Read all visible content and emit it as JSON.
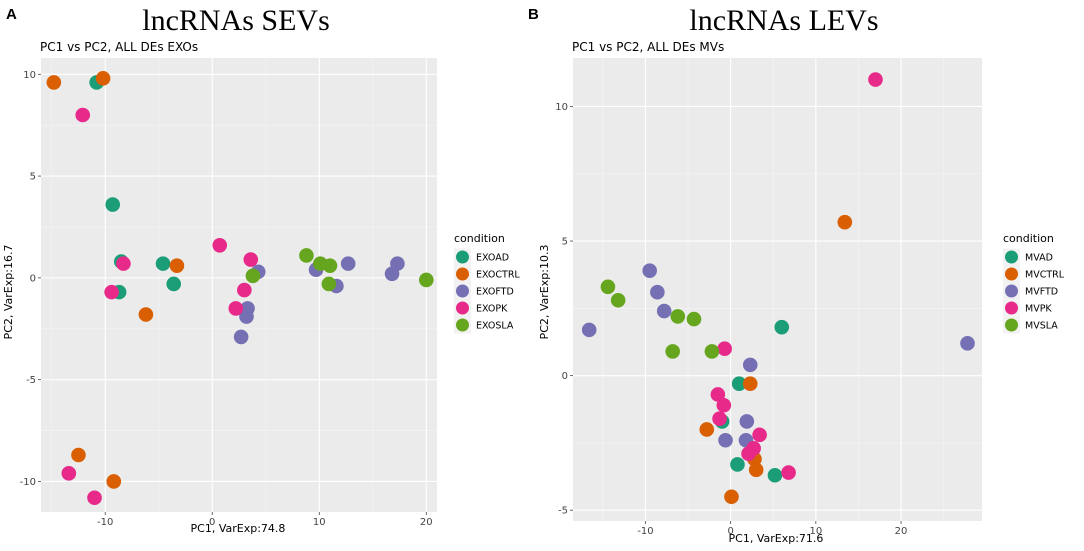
{
  "colors": {
    "AD": "#1b9e77",
    "CTRL": "#d95f02",
    "FTD": "#7570b3",
    "PK": "#e7298a",
    "SLA": "#66a61e"
  },
  "chart_data": [
    {
      "type": "scatter",
      "panel_letter": "A",
      "title": "lncRNAs SEVs",
      "subtitle": "PC1 vs PC2, ALL DEs EXOs",
      "xlabel": "PC1, VarExp:74.8",
      "ylabel": "PC2, VarExp:16.7",
      "xlim": [
        -16,
        21
      ],
      "ylim": [
        -11.5,
        10.8
      ],
      "xticks": [
        -10,
        0,
        10,
        20
      ],
      "yticks": [
        10,
        5,
        0,
        -5,
        -10
      ],
      "xtick_labels": [
        "-10",
        "0",
        "10",
        "20"
      ],
      "ytick_labels": [
        "10",
        "5",
        "0",
        "-5",
        "-10"
      ],
      "grid": true,
      "legend": {
        "title": "condition",
        "position": "right",
        "entries": [
          {
            "label": "EXOAD",
            "color_key": "AD"
          },
          {
            "label": "EXOCTRL",
            "color_key": "CTRL"
          },
          {
            "label": "EXOFTD",
            "color_key": "FTD"
          },
          {
            "label": "EXOPK",
            "color_key": "PK"
          },
          {
            "label": "EXOSLA",
            "color_key": "SLA"
          }
        ]
      },
      "series": [
        {
          "name": "EXOAD",
          "color_key": "AD",
          "points": [
            [
              -10.8,
              9.6
            ],
            [
              -9.3,
              3.6
            ],
            [
              -8.5,
              0.8
            ],
            [
              -8.7,
              -0.7
            ],
            [
              -4.6,
              0.7
            ],
            [
              -3.6,
              -0.3
            ]
          ]
        },
        {
          "name": "EXOCTRL",
          "color_key": "CTRL",
          "points": [
            [
              -14.8,
              9.6
            ],
            [
              -10.2,
              9.8
            ],
            [
              -3.3,
              0.6
            ],
            [
              -6.2,
              -1.8
            ],
            [
              -12.5,
              -8.7
            ],
            [
              -9.2,
              -10.0
            ]
          ]
        },
        {
          "name": "EXOFTD",
          "color_key": "FTD",
          "points": [
            [
              2.7,
              -2.9
            ],
            [
              3.2,
              -1.9
            ],
            [
              3.3,
              -1.5
            ],
            [
              4.3,
              0.3
            ],
            [
              9.7,
              0.4
            ],
            [
              11.6,
              -0.4
            ],
            [
              12.7,
              0.7
            ],
            [
              16.8,
              0.2
            ],
            [
              17.3,
              0.7
            ]
          ]
        },
        {
          "name": "EXOPK",
          "color_key": "PK",
          "points": [
            [
              -12.1,
              8.0
            ],
            [
              -9.4,
              -0.7
            ],
            [
              -8.3,
              0.7
            ],
            [
              0.7,
              1.6
            ],
            [
              3.6,
              0.9
            ],
            [
              3.0,
              -0.6
            ],
            [
              2.2,
              -1.5
            ],
            [
              -13.4,
              -9.6
            ],
            [
              -11.0,
              -10.8
            ]
          ]
        },
        {
          "name": "EXOSLA",
          "color_key": "SLA",
          "points": [
            [
              3.8,
              0.1
            ],
            [
              8.8,
              1.1
            ],
            [
              10.1,
              0.7
            ],
            [
              11.0,
              0.6
            ],
            [
              10.9,
              -0.3
            ],
            [
              20.0,
              -0.1
            ]
          ]
        }
      ]
    },
    {
      "type": "scatter",
      "panel_letter": "B",
      "title": "lncRNAs LEVs",
      "subtitle": "PC1 vs PC2, ALL DEs MVs",
      "xlabel": "PC1, VarExp:71.6",
      "ylabel": "PC2, VarExp:10.3",
      "xlim": [
        -18.5,
        29.5
      ],
      "ylim": [
        -5.4,
        11.8
      ],
      "xticks": [
        -10,
        0,
        10,
        20
      ],
      "yticks": [
        10,
        5,
        0,
        -5
      ],
      "xtick_labels": [
        "-10",
        "0",
        "10",
        "20"
      ],
      "ytick_labels": [
        "10",
        "5",
        "0",
        "-5"
      ],
      "grid": true,
      "legend": {
        "title": "condition",
        "position": "right",
        "entries": [
          {
            "label": "MVAD",
            "color_key": "AD"
          },
          {
            "label": "MVCTRL",
            "color_key": "CTRL"
          },
          {
            "label": "MVFTD",
            "color_key": "FTD"
          },
          {
            "label": "MVPK",
            "color_key": "PK"
          },
          {
            "label": "MVSLA",
            "color_key": "SLA"
          }
        ]
      },
      "series": [
        {
          "name": "MVAD",
          "color_key": "AD",
          "points": [
            [
              6.0,
              1.8
            ],
            [
              1.0,
              -0.3
            ],
            [
              -1.0,
              -1.7
            ],
            [
              0.8,
              -3.3
            ],
            [
              5.2,
              -3.7
            ]
          ]
        },
        {
          "name": "MVCTRL",
          "color_key": "CTRL",
          "points": [
            [
              13.4,
              5.7
            ],
            [
              2.3,
              -0.3
            ],
            [
              -2.8,
              -2.0
            ],
            [
              2.8,
              -3.1
            ],
            [
              3.0,
              -3.5
            ],
            [
              0.1,
              -4.5
            ]
          ]
        },
        {
          "name": "MVFTD",
          "color_key": "FTD",
          "points": [
            [
              -16.6,
              1.7
            ],
            [
              -9.5,
              3.9
            ],
            [
              -8.6,
              3.1
            ],
            [
              -7.8,
              2.4
            ],
            [
              2.3,
              0.4
            ],
            [
              1.9,
              -1.7
            ],
            [
              1.8,
              -2.4
            ],
            [
              -0.6,
              -2.4
            ],
            [
              27.8,
              1.2
            ]
          ]
        },
        {
          "name": "MVPK",
          "color_key": "PK",
          "points": [
            [
              17.0,
              11.0
            ],
            [
              -0.7,
              1.0
            ],
            [
              -1.5,
              -0.7
            ],
            [
              -0.8,
              -1.1
            ],
            [
              -1.3,
              -1.6
            ],
            [
              2.7,
              -2.7
            ],
            [
              3.4,
              -2.2
            ],
            [
              2.1,
              -2.9
            ],
            [
              6.8,
              -3.6
            ]
          ]
        },
        {
          "name": "MVSLA",
          "color_key": "SLA",
          "points": [
            [
              -14.4,
              3.3
            ],
            [
              -13.2,
              2.8
            ],
            [
              -6.2,
              2.2
            ],
            [
              -4.3,
              2.1
            ],
            [
              -6.8,
              0.9
            ],
            [
              -2.2,
              0.9
            ]
          ]
        }
      ]
    }
  ]
}
